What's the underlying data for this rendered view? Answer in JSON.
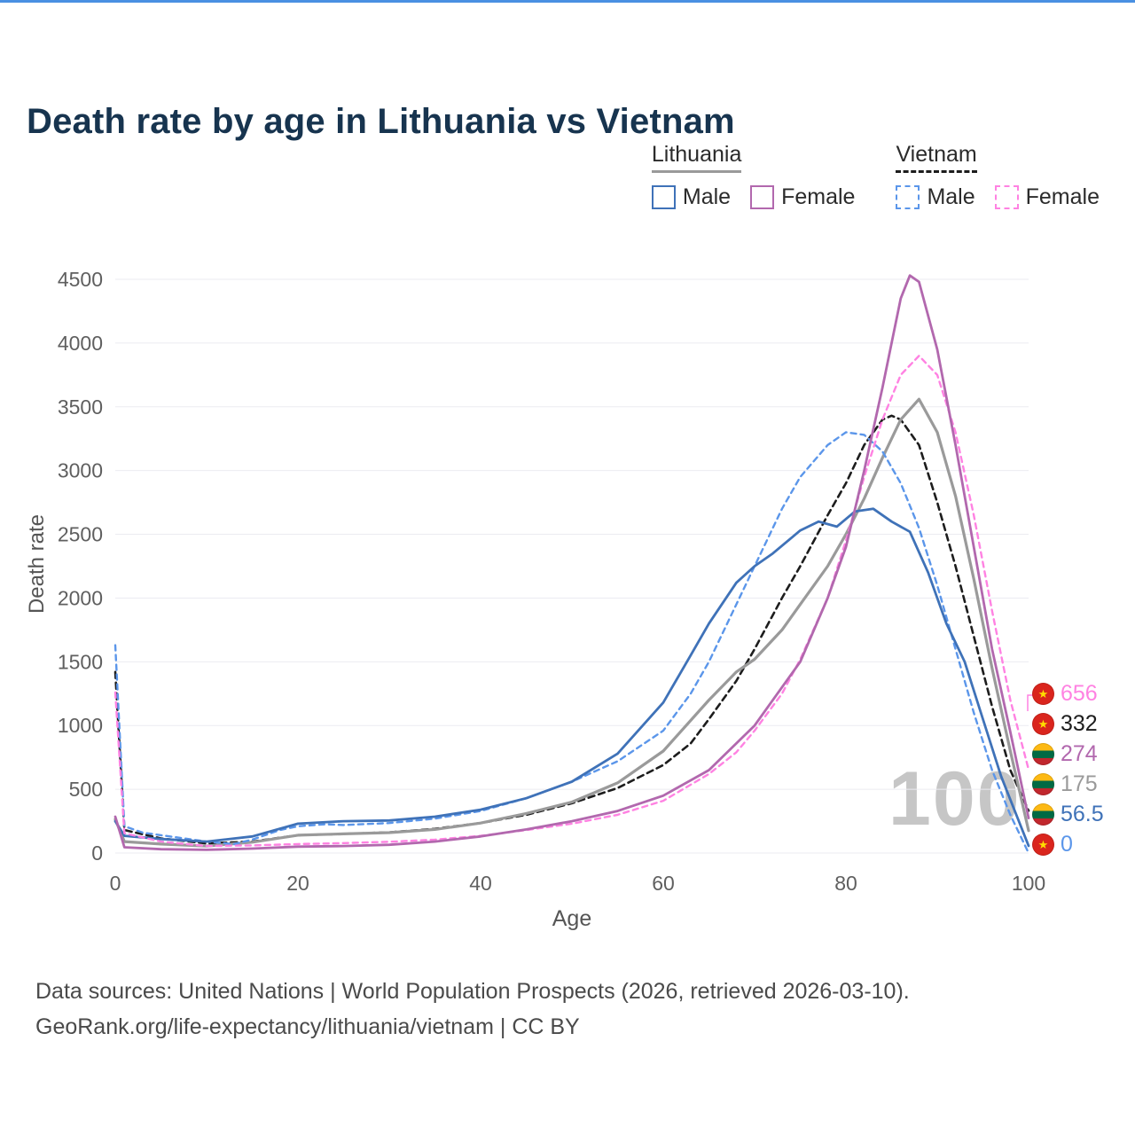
{
  "title": "Death rate by age in Lithuania vs Vietnam",
  "watermark": "100",
  "legend": {
    "lithuania": {
      "label": "Lithuania",
      "male": "Male",
      "female": "Female"
    },
    "vietnam": {
      "label": "Vietnam",
      "male": "Male",
      "female": "Female"
    }
  },
  "footer": {
    "line1": "Data sources: United Nations | World Population Prospects (2026, retrieved 2026-03-10).",
    "line2": "GeoRank.org/life-expectancy/lithuania/vietnam | CC BY"
  },
  "colors": {
    "accent_top": "#4a90e2",
    "lt_line": "#9a9a9a",
    "vn_line": "#1d1d1d",
    "lt_male": "#3f72b8",
    "lt_female": "#b268ae",
    "vn_male": "#5b96ea",
    "vn_female": "#ff82e2"
  },
  "chart_data": {
    "type": "line",
    "title": "Death rate by age in Lithuania vs Vietnam",
    "xlabel": "Age",
    "ylabel": "Death rate",
    "xlim": [
      0,
      100
    ],
    "ylim": [
      0,
      4500
    ],
    "xticks": [
      0,
      20,
      40,
      60,
      80,
      100
    ],
    "yticks": [
      0,
      500,
      1000,
      1500,
      2000,
      2500,
      3000,
      3500,
      4000,
      4500
    ],
    "grid": "horizontal",
    "legend_position": "top-right",
    "series": [
      {
        "id": "vn_all",
        "name": "Vietnam (both sexes)",
        "color": "#1d1d1d",
        "dash": [
          7,
          5
        ],
        "width": 2.6,
        "x": [
          0,
          1,
          5,
          10,
          15,
          20,
          25,
          30,
          35,
          40,
          45,
          50,
          55,
          60,
          63,
          65,
          68,
          70,
          73,
          75,
          78,
          80,
          82,
          84,
          85,
          86,
          88,
          90,
          92,
          94,
          96,
          98,
          100
        ],
        "y": [
          1420,
          180,
          115,
          75,
          90,
          140,
          150,
          162,
          190,
          235,
          300,
          390,
          510,
          690,
          860,
          1050,
          1350,
          1600,
          2000,
          2250,
          2650,
          2900,
          3200,
          3400,
          3430,
          3400,
          3200,
          2750,
          2250,
          1700,
          1150,
          650,
          332
        ]
      },
      {
        "id": "lt_all",
        "name": "Lithuania (both sexes)",
        "color": "#9a9a9a",
        "dash": null,
        "width": 3.2,
        "x": [
          0,
          1,
          5,
          10,
          15,
          20,
          25,
          30,
          35,
          40,
          45,
          50,
          55,
          60,
          65,
          68,
          70,
          73,
          75,
          78,
          80,
          82,
          84,
          86,
          88,
          90,
          92,
          94,
          96,
          98,
          100
        ],
        "y": [
          265,
          90,
          70,
          55,
          85,
          140,
          150,
          160,
          185,
          235,
          310,
          400,
          550,
          800,
          1200,
          1420,
          1520,
          1750,
          1950,
          2250,
          2500,
          2780,
          3100,
          3400,
          3560,
          3300,
          2800,
          2150,
          1450,
          800,
          175
        ]
      },
      {
        "id": "vn_male",
        "name": "Vietnam Male",
        "color": "#5b96ea",
        "dash": [
          6,
          5
        ],
        "width": 2.4,
        "x": [
          0,
          1,
          3,
          5,
          8,
          10,
          13,
          15,
          18,
          20,
          23,
          25,
          30,
          35,
          40,
          45,
          50,
          55,
          60,
          63,
          65,
          68,
          70,
          73,
          75,
          78,
          80,
          82,
          84,
          86,
          88,
          90,
          92,
          94,
          96,
          98,
          100
        ],
        "y": [
          1630,
          210,
          160,
          140,
          110,
          90,
          70,
          105,
          180,
          210,
          225,
          220,
          235,
          270,
          330,
          430,
          560,
          720,
          960,
          1250,
          1500,
          1950,
          2250,
          2700,
          2950,
          3200,
          3300,
          3280,
          3150,
          2900,
          2550,
          2100,
          1600,
          1100,
          650,
          300,
          0
        ]
      },
      {
        "id": "lt_male",
        "name": "Lithuania Male",
        "color": "#3f72b8",
        "dash": null,
        "width": 2.8,
        "x": [
          0,
          1,
          5,
          10,
          15,
          20,
          25,
          30,
          35,
          40,
          45,
          50,
          55,
          60,
          63,
          65,
          68,
          70,
          72,
          75,
          77,
          79,
          81,
          83,
          85,
          87,
          89,
          91,
          93,
          95,
          97,
          100
        ],
        "y": [
          250,
          135,
          110,
          90,
          130,
          230,
          250,
          255,
          285,
          340,
          430,
          560,
          780,
          1180,
          1550,
          1800,
          2120,
          2250,
          2350,
          2530,
          2600,
          2560,
          2680,
          2700,
          2600,
          2520,
          2200,
          1800,
          1500,
          1050,
          600,
          56.5
        ]
      },
      {
        "id": "vn_female",
        "name": "Vietnam Female",
        "color": "#ff82e2",
        "dash": [
          6,
          5
        ],
        "width": 2.4,
        "x": [
          0,
          1,
          5,
          10,
          15,
          20,
          25,
          30,
          35,
          40,
          45,
          50,
          55,
          60,
          65,
          68,
          70,
          73,
          75,
          78,
          80,
          82,
          84,
          86,
          88,
          90,
          92,
          94,
          96,
          98,
          100
        ],
        "y": [
          1260,
          155,
          90,
          55,
          60,
          70,
          78,
          88,
          105,
          135,
          180,
          230,
          300,
          410,
          620,
          790,
          960,
          1250,
          1520,
          2000,
          2450,
          2950,
          3400,
          3750,
          3900,
          3750,
          3300,
          2650,
          1900,
          1200,
          656
        ]
      },
      {
        "id": "lt_female",
        "name": "Lithuania Female",
        "color": "#b268ae",
        "dash": null,
        "width": 2.8,
        "x": [
          0,
          1,
          5,
          10,
          15,
          20,
          25,
          30,
          35,
          40,
          45,
          50,
          55,
          60,
          65,
          70,
          75,
          78,
          80,
          82,
          84,
          86,
          87,
          88,
          90,
          92,
          94,
          96,
          98,
          100
        ],
        "y": [
          285,
          45,
          30,
          25,
          35,
          50,
          55,
          65,
          90,
          130,
          185,
          250,
          330,
          450,
          650,
          1000,
          1500,
          2000,
          2400,
          3000,
          3650,
          4350,
          4530,
          4480,
          3950,
          3200,
          2400,
          1600,
          950,
          274
        ]
      }
    ],
    "end_labels": [
      {
        "value": "656",
        "flag": "vn",
        "color": "#ff82e2"
      },
      {
        "value": "332",
        "flag": "vn",
        "color": "#1d1d1d"
      },
      {
        "value": "274",
        "flag": "lt",
        "color": "#b268ae"
      },
      {
        "value": "175",
        "flag": "lt",
        "color": "#9a9a9a"
      },
      {
        "value": "56.5",
        "flag": "lt",
        "color": "#3f72b8"
      },
      {
        "value": "0",
        "flag": "vn",
        "color": "#5b96ea"
      }
    ]
  }
}
